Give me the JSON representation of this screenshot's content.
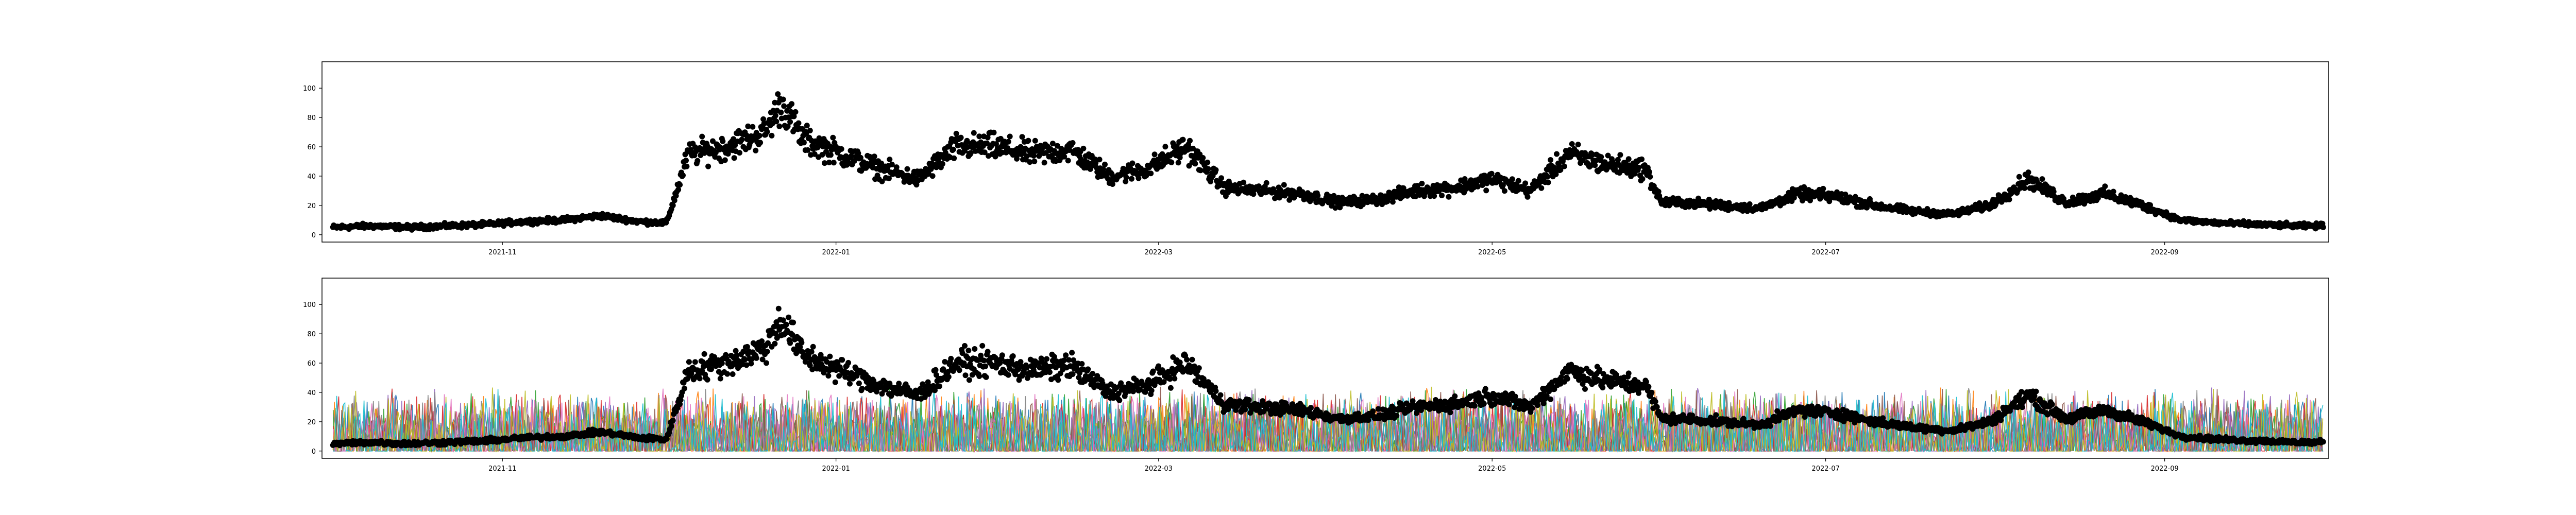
{
  "chart_data": [
    {
      "type": "scatter",
      "title": "",
      "xlabel": "",
      "ylabel": "",
      "x_range": [
        "2021-09-29",
        "2022-10-01"
      ],
      "ylim": [
        -5,
        118
      ],
      "x_ticks": [
        "2021-11",
        "2022-01",
        "2022-03",
        "2022-05",
        "2022-07",
        "2022-09"
      ],
      "y_ticks": [
        0,
        20,
        40,
        60,
        80,
        100
      ],
      "grid": false,
      "legend": "none",
      "marker_color": "#000000",
      "series": [
        {
          "x": [
            "2021-10-01",
            "2021-10-08",
            "2021-10-15",
            "2021-10-22",
            "2021-10-29",
            "2021-11-05",
            "2021-11-12",
            "2021-11-19",
            "2021-11-26",
            "2021-12-01",
            "2021-12-05",
            "2021-12-12",
            "2021-12-19",
            "2021-12-22",
            "2021-12-26",
            "2022-01-02",
            "2022-01-09",
            "2022-01-16",
            "2022-01-23",
            "2022-01-30",
            "2022-02-06",
            "2022-02-13",
            "2022-02-20",
            "2022-02-27",
            "2022-03-06",
            "2022-03-13",
            "2022-03-20",
            "2022-03-27",
            "2022-04-03",
            "2022-04-10",
            "2022-04-17",
            "2022-04-24",
            "2022-05-01",
            "2022-05-08",
            "2022-05-15",
            "2022-05-22",
            "2022-05-29",
            "2022-06-01",
            "2022-06-05",
            "2022-06-12",
            "2022-06-19",
            "2022-06-26",
            "2022-07-03",
            "2022-07-10",
            "2022-07-17",
            "2022-07-24",
            "2022-07-31",
            "2022-08-07",
            "2022-08-14",
            "2022-08-21",
            "2022-08-28",
            "2022-09-04",
            "2022-09-11",
            "2022-09-18",
            "2022-09-25",
            "2022-09-30"
          ],
          "y": [
            5,
            6,
            5,
            6,
            7,
            9,
            10,
            13,
            9,
            8,
            55,
            60,
            70,
            90,
            65,
            55,
            45,
            38,
            60,
            60,
            55,
            58,
            40,
            45,
            60,
            32,
            30,
            28,
            22,
            24,
            30,
            32,
            38,
            30,
            55,
            48,
            45,
            22,
            22,
            20,
            18,
            28,
            26,
            20,
            16,
            14,
            20,
            38,
            22,
            28,
            20,
            10,
            8,
            7,
            6,
            6
          ]
        }
      ]
    },
    {
      "type": "scatter",
      "title": "",
      "xlabel": "",
      "ylabel": "",
      "x_range": [
        "2021-09-29",
        "2022-10-01"
      ],
      "ylim": [
        -5,
        118
      ],
      "x_ticks": [
        "2021-11",
        "2022-01",
        "2022-03",
        "2022-05",
        "2022-07",
        "2022-09"
      ],
      "y_ticks": [
        0,
        20,
        40,
        60,
        80,
        100
      ],
      "grid": false,
      "legend": "none",
      "marker_color": "#000000",
      "background_series_colors": [
        "#1f77b4",
        "#ff7f0e",
        "#2ca02c",
        "#d62728",
        "#9467bd",
        "#8c564b",
        "#e377c2",
        "#7f7f7f",
        "#bcbd22",
        "#17becf"
      ],
      "background_series_range": [
        0,
        45
      ],
      "series": [
        {
          "x": [
            "2021-10-01",
            "2021-10-08",
            "2021-10-15",
            "2021-10-22",
            "2021-10-29",
            "2021-11-05",
            "2021-11-12",
            "2021-11-19",
            "2021-11-26",
            "2021-12-01",
            "2021-12-05",
            "2021-12-12",
            "2021-12-19",
            "2021-12-22",
            "2021-12-26",
            "2022-01-02",
            "2022-01-09",
            "2022-01-16",
            "2022-01-23",
            "2022-01-30",
            "2022-02-06",
            "2022-02-13",
            "2022-02-20",
            "2022-02-27",
            "2022-03-06",
            "2022-03-13",
            "2022-03-20",
            "2022-03-27",
            "2022-04-03",
            "2022-04-10",
            "2022-04-17",
            "2022-04-24",
            "2022-05-01",
            "2022-05-08",
            "2022-05-15",
            "2022-05-22",
            "2022-05-29",
            "2022-06-01",
            "2022-06-05",
            "2022-06-12",
            "2022-06-19",
            "2022-06-26",
            "2022-07-03",
            "2022-07-10",
            "2022-07-17",
            "2022-07-24",
            "2022-07-31",
            "2022-08-07",
            "2022-08-14",
            "2022-08-21",
            "2022-08-28",
            "2022-09-04",
            "2022-09-11",
            "2022-09-18",
            "2022-09-25",
            "2022-09-30"
          ],
          "y": [
            5,
            6,
            5,
            6,
            7,
            9,
            10,
            13,
            9,
            8,
            55,
            60,
            70,
            90,
            65,
            55,
            45,
            38,
            60,
            60,
            55,
            58,
            40,
            45,
            60,
            32,
            30,
            28,
            22,
            24,
            30,
            32,
            38,
            30,
            55,
            48,
            45,
            22,
            22,
            20,
            18,
            28,
            26,
            20,
            16,
            14,
            20,
            38,
            22,
            28,
            20,
            10,
            8,
            7,
            6,
            6
          ]
        }
      ]
    }
  ]
}
